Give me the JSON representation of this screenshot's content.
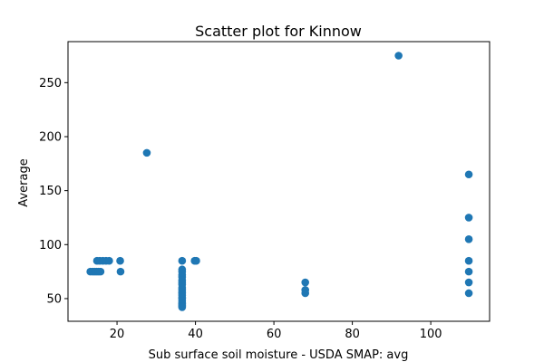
{
  "chart_data": {
    "type": "scatter",
    "title": "Scatter plot for Kinnow",
    "xlabel": "Sub surface soil moisture - USDA SMAP: avg",
    "ylabel": "Average",
    "xlim": [
      7.5,
      115
    ],
    "ylim": [
      29,
      288
    ],
    "x_ticks": [
      20,
      40,
      60,
      80,
      100
    ],
    "y_ticks": [
      50,
      100,
      150,
      200,
      250
    ],
    "grid": false,
    "marker_color": "#1f77b4",
    "points": [
      {
        "x": 13.2,
        "y": 75
      },
      {
        "x": 13.8,
        "y": 75
      },
      {
        "x": 14.3,
        "y": 75
      },
      {
        "x": 14.8,
        "y": 75
      },
      {
        "x": 15.3,
        "y": 75
      },
      {
        "x": 15.8,
        "y": 75
      },
      {
        "x": 14.9,
        "y": 85
      },
      {
        "x": 15.6,
        "y": 85
      },
      {
        "x": 16.4,
        "y": 85
      },
      {
        "x": 17.2,
        "y": 85
      },
      {
        "x": 18.0,
        "y": 85
      },
      {
        "x": 20.8,
        "y": 85
      },
      {
        "x": 20.9,
        "y": 75
      },
      {
        "x": 27.6,
        "y": 185
      },
      {
        "x": 36.6,
        "y": 85
      },
      {
        "x": 36.6,
        "y": 77
      },
      {
        "x": 36.6,
        "y": 75
      },
      {
        "x": 36.6,
        "y": 72
      },
      {
        "x": 36.6,
        "y": 70
      },
      {
        "x": 36.6,
        "y": 67
      },
      {
        "x": 36.6,
        "y": 65
      },
      {
        "x": 36.6,
        "y": 63
      },
      {
        "x": 36.6,
        "y": 60
      },
      {
        "x": 36.6,
        "y": 58
      },
      {
        "x": 36.6,
        "y": 56
      },
      {
        "x": 36.6,
        "y": 55
      },
      {
        "x": 36.6,
        "y": 53
      },
      {
        "x": 36.6,
        "y": 51
      },
      {
        "x": 36.6,
        "y": 50
      },
      {
        "x": 36.6,
        "y": 48
      },
      {
        "x": 36.6,
        "y": 46
      },
      {
        "x": 36.6,
        "y": 45
      },
      {
        "x": 36.6,
        "y": 44
      },
      {
        "x": 36.6,
        "y": 43
      },
      {
        "x": 36.6,
        "y": 42
      },
      {
        "x": 39.8,
        "y": 85
      },
      {
        "x": 40.2,
        "y": 85
      },
      {
        "x": 68.0,
        "y": 65
      },
      {
        "x": 68.0,
        "y": 58
      },
      {
        "x": 68.0,
        "y": 55
      },
      {
        "x": 91.8,
        "y": 275
      },
      {
        "x": 109.7,
        "y": 165
      },
      {
        "x": 109.7,
        "y": 125
      },
      {
        "x": 109.7,
        "y": 105
      },
      {
        "x": 109.7,
        "y": 85
      },
      {
        "x": 109.7,
        "y": 75
      },
      {
        "x": 109.7,
        "y": 65
      },
      {
        "x": 109.7,
        "y": 55
      }
    ]
  }
}
